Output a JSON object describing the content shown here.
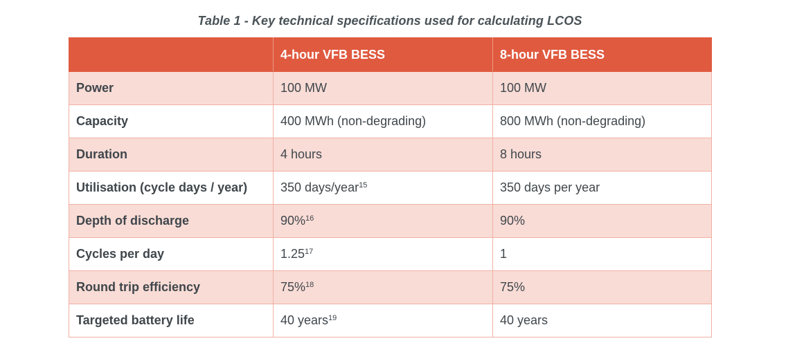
{
  "caption": "Table 1 - Key technical specifications used for calculating LCOS",
  "table": {
    "headers": [
      "",
      "4-hour VFB BESS",
      "8-hour VFB BESS"
    ],
    "rows": [
      {
        "label": "Power",
        "col1": "100 MW",
        "col1_sup": "",
        "col2": "100 MW"
      },
      {
        "label": "Capacity",
        "col1": "400 MWh (non-degrading)",
        "col1_sup": "",
        "col2": "800 MWh (non-degrading)"
      },
      {
        "label": "Duration",
        "col1": "4 hours",
        "col1_sup": "",
        "col2": "8 hours"
      },
      {
        "label": "Utilisation (cycle days / year)",
        "col1": "350 days/year",
        "col1_sup": "15",
        "col2": "350 days per year"
      },
      {
        "label": "Depth of discharge",
        "col1": "90%",
        "col1_sup": "16",
        "col2": "90%"
      },
      {
        "label": "Cycles per day",
        "col1": "1.25",
        "col1_sup": "17",
        "col2": "1"
      },
      {
        "label": "Round trip efficiency",
        "col1": "75%",
        "col1_sup": "18",
        "col2": "75%"
      },
      {
        "label": "Targeted battery life",
        "col1": "40 years",
        "col1_sup": "19",
        "col2": "40 years"
      }
    ]
  }
}
